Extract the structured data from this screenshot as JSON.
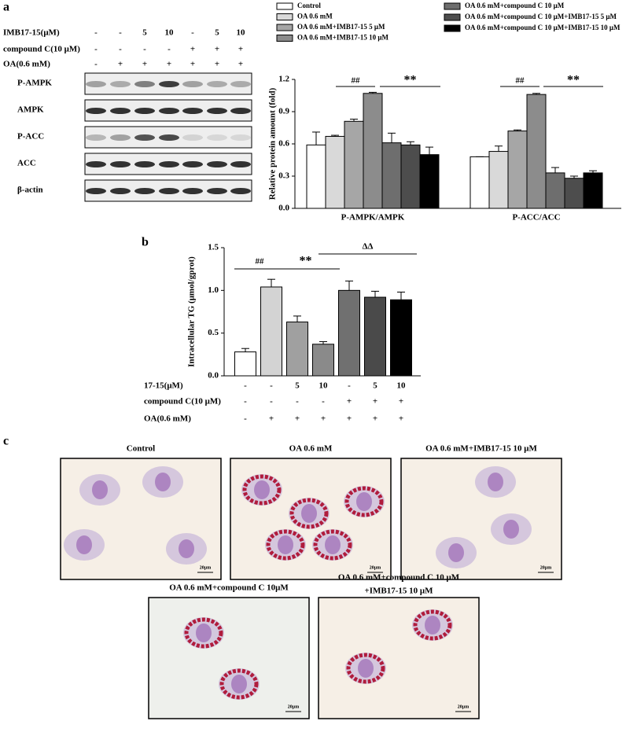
{
  "panel_labels": [
    "a",
    "b",
    "c"
  ],
  "blot": {
    "conditions": [
      {
        "name": "IMB17-15(μM)",
        "values": [
          "-",
          "-",
          "5",
          "10",
          "-",
          "5",
          "10"
        ]
      },
      {
        "name": "compound C(10 μM)",
        "values": [
          "-",
          "-",
          "-",
          "-",
          "+",
          "+",
          "+"
        ]
      },
      {
        "name": "OA(0.6 mM)",
        "values": [
          "-",
          "+",
          "+",
          "+",
          "+",
          "+",
          "+"
        ]
      }
    ],
    "bands": [
      "P-AMPK",
      "AMPK",
      "P-ACC",
      "ACC",
      "β-actin"
    ]
  },
  "chart_data": [
    {
      "type": "bar",
      "ylabel": "Relative protein amount (fold)",
      "categories": [
        "P-AMPK/AMPK",
        "P-ACC/ACC"
      ],
      "series": [
        {
          "name": "Control",
          "color": "#ffffff",
          "values": [
            0.59,
            0.48
          ],
          "errors": [
            0.12,
            0
          ]
        },
        {
          "name": "OA 0.6 mM",
          "color": "#d9d9d9",
          "values": [
            0.67,
            0.53
          ],
          "errors": [
            0.01,
            0.05
          ]
        },
        {
          "name": "OA 0.6 mM+IMB17-15 5 μM",
          "color": "#a6a6a6",
          "values": [
            0.81,
            0.72
          ],
          "errors": [
            0.02,
            0.01
          ]
        },
        {
          "name": "OA 0.6 mM+IMB17-15 10 μM",
          "color": "#8c8c8c",
          "values": [
            1.07,
            1.06
          ],
          "errors": [
            0.01,
            0.01
          ]
        },
        {
          "name": "OA 0.6 mM+compound C 10 μM",
          "color": "#6e6e6e",
          "values": [
            0.61,
            0.33
          ],
          "errors": [
            0.09,
            0.05
          ]
        },
        {
          "name": "OA 0.6 mM+compound C 10 μM+IMB17-15 5 μM",
          "color": "#4d4d4d",
          "values": [
            0.59,
            0.28
          ],
          "errors": [
            0.03,
            0.02
          ]
        },
        {
          "name": "OA 0.6 mM+compound C 10 μM+IMB17-15 10 μM",
          "color": "#000000",
          "values": [
            0.5,
            0.33
          ],
          "errors": [
            0.07,
            0.02
          ]
        }
      ],
      "ylim": [
        0,
        1.2
      ],
      "yticks": [
        {
          "value": 0,
          "label": "0.0"
        },
        0.3,
        0.6,
        0.9,
        1.2
      ],
      "annotations": [
        "##",
        "**",
        "##",
        "**"
      ]
    },
    {
      "type": "bar",
      "ylabel": "Intracellular TG (μmol/gprot)",
      "categories": [
        null,
        null,
        null,
        null,
        null,
        null,
        null
      ],
      "values": [
        0.28,
        1.04,
        0.63,
        0.37,
        1.0,
        0.92,
        0.89
      ],
      "errors": [
        0.04,
        0.09,
        0.07,
        0.03,
        0.11,
        0.07,
        0.09
      ],
      "colors": [
        "#ffffff",
        "#d3d3d3",
        "#a0a0a0",
        "#8a8a8a",
        "#707070",
        "#4a4a4a",
        "#000000"
      ],
      "ylim": [
        0,
        1.5
      ],
      "yticks": [
        {
          "value": 0,
          "label": "0.0"
        },
        0.5,
        {
          "value": 1,
          "label": "1.0"
        },
        1.5
      ],
      "annotations": [
        "##",
        "**",
        "ΔΔ"
      ],
      "treatments": [
        {
          "name": "17-15(μM)",
          "values": [
            "-",
            "-",
            "5",
            "10",
            "-",
            "5",
            "10"
          ]
        },
        {
          "name": "compound C(10 μM)",
          "values": [
            "-",
            "-",
            "-",
            "-",
            "+",
            "+",
            "+"
          ]
        },
        {
          "name": "OA(0.6 mM)",
          "values": [
            "-",
            "+",
            "+",
            "+",
            "+",
            "+",
            "+"
          ]
        }
      ]
    }
  ],
  "micrographs": [
    {
      "title": "Control",
      "scale": "20μm"
    },
    {
      "title": "OA 0.6 mM",
      "scale": "20μm"
    },
    {
      "title": "OA 0.6 mM+IMB17-15 10 μM",
      "scale": "20μm"
    },
    {
      "title": "OA 0.6 mM+compound C 10μM",
      "scale": "20μm"
    },
    {
      "title": [
        "OA 0.6 mM+compound C 10 μM",
        "+IMB17-15 10 μM"
      ],
      "scale": "20μm"
    }
  ]
}
